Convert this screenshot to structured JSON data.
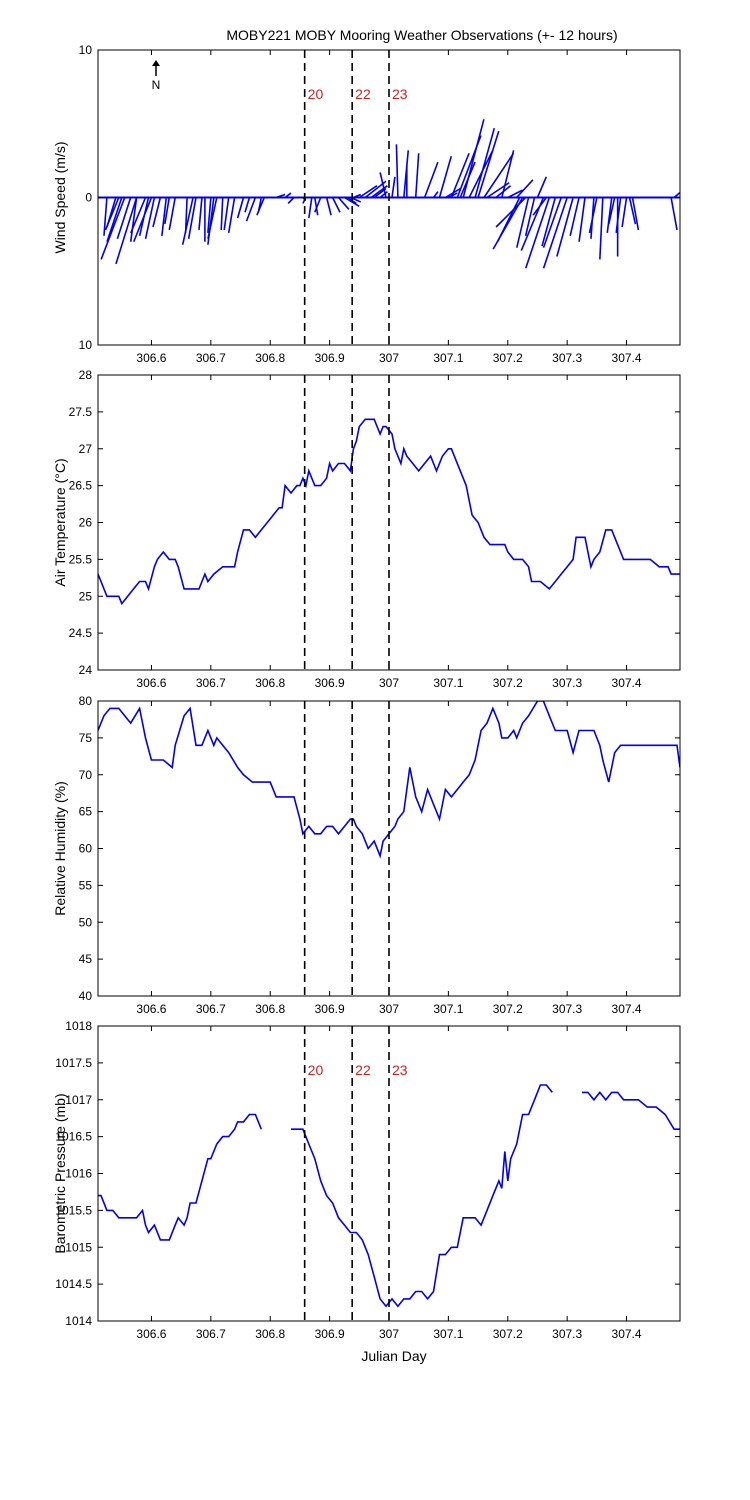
{
  "title": "MOBY221 MOBY Mooring Weather Observations (+- 12 hours)",
  "xlabel": "Julian Day",
  "north_label": "N",
  "colors": {
    "series": "#0000ee",
    "marker_text": "#cc2222",
    "axes": "#000000"
  },
  "markers": [
    {
      "label": "20",
      "x": 306.858
    },
    {
      "label": "22",
      "x": 306.938
    },
    {
      "label": "23",
      "x": 307.0
    }
  ],
  "x_ticks": [
    306.6,
    306.7,
    306.8,
    306.9,
    307,
    307.1,
    307.2,
    307.3,
    307.4
  ],
  "x_tick_labels": [
    "306.6",
    "306.7",
    "306.8",
    "306.9",
    "307",
    "307.1",
    "307.2",
    "307.3",
    "307.4"
  ],
  "chart_data": [
    {
      "type": "vector",
      "ylabel": "Wind Speed (m/s)",
      "xlim": [
        306.51,
        307.49
      ],
      "ylim": [
        -10,
        10
      ],
      "y_ticks": [
        -10,
        0,
        10
      ],
      "y_tick_labels": [
        "10",
        "0",
        "10"
      ],
      "show_markers": true,
      "vectors": [
        [
          306.51,
          -0.5,
          -2.0
        ],
        [
          306.525,
          -0.2,
          -2.6
        ],
        [
          306.54,
          -0.6,
          -2.0
        ],
        [
          306.545,
          -0.9,
          -2.2
        ],
        [
          306.55,
          -1.0,
          -3.0
        ],
        [
          306.555,
          -1.6,
          -4.2
        ],
        [
          306.565,
          -0.9,
          -2.8
        ],
        [
          306.575,
          -1.4,
          -4.5
        ],
        [
          306.575,
          -0.4,
          -3.0
        ],
        [
          306.59,
          -1.0,
          -2.4
        ],
        [
          306.595,
          -0.6,
          -2.6
        ],
        [
          306.6,
          -1.2,
          -3.0
        ],
        [
          306.605,
          -0.6,
          -2.8
        ],
        [
          306.615,
          -0.5,
          -2.0
        ],
        [
          306.625,
          -0.3,
          -2.6
        ],
        [
          306.63,
          -0.3,
          -1.8
        ],
        [
          306.64,
          -0.4,
          -2.2
        ],
        [
          306.66,
          -0.1,
          -2.4
        ],
        [
          306.67,
          -0.7,
          -3.2
        ],
        [
          306.675,
          -0.5,
          -2.8
        ],
        [
          306.685,
          -0.2,
          -2.2
        ],
        [
          306.69,
          0.0,
          -3.0
        ],
        [
          306.7,
          -0.2,
          -2.4
        ],
        [
          306.705,
          -0.4,
          -3.2
        ],
        [
          306.71,
          -0.6,
          -2.8
        ],
        [
          306.72,
          -0.1,
          -2.2
        ],
        [
          306.73,
          -0.3,
          -2.2
        ],
        [
          306.74,
          -0.4,
          -2.4
        ],
        [
          306.755,
          -0.4,
          -1.4
        ],
        [
          306.765,
          -0.3,
          -1.0
        ],
        [
          306.775,
          -0.6,
          -1.6
        ],
        [
          306.785,
          -0.2,
          -1.0
        ],
        [
          306.79,
          -0.5,
          -1.2
        ],
        [
          306.81,
          0.6,
          0.2
        ],
        [
          306.825,
          0.4,
          0.3
        ],
        [
          306.84,
          -0.4,
          -0.4
        ],
        [
          306.855,
          0.2,
          -0.2
        ],
        [
          306.86,
          -0.2,
          -0.4
        ],
        [
          306.87,
          -0.2,
          -1.4
        ],
        [
          306.875,
          0.2,
          -1.2
        ],
        [
          306.885,
          -0.4,
          -1.0
        ],
        [
          306.895,
          0.3,
          -1.2
        ],
        [
          306.905,
          0.5,
          -1.0
        ],
        [
          306.915,
          0.7,
          -0.8
        ],
        [
          306.925,
          1.0,
          -0.6
        ],
        [
          306.93,
          0.6,
          -0.4
        ],
        [
          306.935,
          0.7,
          -0.3
        ],
        [
          306.94,
          0.5,
          0.2
        ],
        [
          306.95,
          1.2,
          0.8
        ],
        [
          306.96,
          1.4,
          1.1
        ],
        [
          306.97,
          1.1,
          0.8
        ],
        [
          306.975,
          0.8,
          0.6
        ],
        [
          306.985,
          0.5,
          0.4
        ],
        [
          306.995,
          -0.4,
          1.7
        ],
        [
          307.005,
          0.2,
          1.4
        ],
        [
          307.015,
          -0.1,
          3.6
        ],
        [
          307.025,
          0.3,
          3.2
        ],
        [
          307.03,
          0.0,
          2.2
        ],
        [
          307.045,
          0.2,
          3.0
        ],
        [
          307.06,
          0.9,
          2.4
        ],
        [
          307.075,
          0.3,
          0.4
        ],
        [
          307.085,
          0.8,
          2.8
        ],
        [
          307.095,
          1.0,
          0.6
        ],
        [
          307.1,
          0.6,
          0.3
        ],
        [
          307.105,
          1.2,
          3.0
        ],
        [
          307.115,
          1.6,
          4.2
        ],
        [
          307.12,
          1.0,
          2.4
        ],
        [
          307.125,
          1.4,
          5.3
        ],
        [
          307.135,
          1.6,
          3.2
        ],
        [
          307.145,
          1.3,
          4.7
        ],
        [
          307.15,
          1.4,
          4.5
        ],
        [
          307.16,
          2.0,
          3.0
        ],
        [
          307.165,
          1.5,
          1.0
        ],
        [
          307.17,
          1.5,
          0.0
        ],
        [
          307.18,
          1.0,
          0.8
        ],
        [
          307.19,
          0.8,
          3.2
        ],
        [
          307.2,
          1.0,
          0.5
        ],
        [
          307.215,
          1.1,
          1.2
        ],
        [
          307.22,
          -1.5,
          -3.0
        ],
        [
          307.225,
          -2.0,
          -3.5
        ],
        [
          307.23,
          -2.0,
          -2.0
        ],
        [
          307.235,
          -0.8,
          -3.4
        ],
        [
          307.245,
          -0.6,
          -2.6
        ],
        [
          307.25,
          0.6,
          1.4
        ],
        [
          307.26,
          -1.5,
          -3.6
        ],
        [
          307.265,
          -0.9,
          -1.2
        ],
        [
          307.27,
          -1.6,
          -4.8
        ],
        [
          307.28,
          -0.9,
          -3.3
        ],
        [
          307.29,
          -1.2,
          -3.4
        ],
        [
          307.3,
          -1.6,
          -4.8
        ],
        [
          307.31,
          -1.1,
          -4.0
        ],
        [
          307.32,
          -0.6,
          -2.6
        ],
        [
          307.33,
          -0.4,
          -3.0
        ],
        [
          307.345,
          -0.2,
          -2.8
        ],
        [
          307.35,
          -0.5,
          -2.4
        ],
        [
          307.36,
          -0.2,
          -4.2
        ],
        [
          307.375,
          -0.3,
          -2.4
        ],
        [
          307.38,
          -0.4,
          -1.8
        ],
        [
          307.385,
          0.0,
          -4.0
        ],
        [
          307.39,
          -0.3,
          -2.4
        ],
        [
          307.4,
          -0.3,
          -2.0
        ],
        [
          307.405,
          0.4,
          -1.8
        ],
        [
          307.41,
          0.4,
          -2.2
        ],
        [
          307.41,
          0.0,
          0.0
        ],
        [
          307.44,
          0.0,
          0.0
        ],
        [
          307.47,
          0.0,
          0.0
        ],
        [
          307.475,
          0.4,
          -2.2
        ],
        [
          307.48,
          0.6,
          0.5
        ]
      ]
    },
    {
      "type": "line",
      "ylabel": "Air Temperature (°C)",
      "xlim": [
        306.51,
        307.49
      ],
      "ylim": [
        24,
        28
      ],
      "y_ticks": [
        24,
        24.5,
        25,
        25.5,
        26,
        26.5,
        27,
        27.5,
        28
      ],
      "y_tick_labels": [
        "24",
        "24.5",
        "25",
        "25.5",
        "26",
        "26.5",
        "27",
        "27.5",
        "28"
      ],
      "show_markers": false,
      "x": [
        306.51,
        306.515,
        306.525,
        306.535,
        306.545,
        306.55,
        306.56,
        306.57,
        306.58,
        306.59,
        306.595,
        306.605,
        306.61,
        306.62,
        306.63,
        306.64,
        306.645,
        306.655,
        306.66,
        306.68,
        306.69,
        306.695,
        306.705,
        306.72,
        306.73,
        306.74,
        306.745,
        306.755,
        306.765,
        306.775,
        306.785,
        306.795,
        306.805,
        306.815,
        306.82,
        306.825,
        306.835,
        306.845,
        306.85,
        306.855,
        306.86,
        306.865,
        306.87,
        306.875,
        306.885,
        306.895,
        306.9,
        306.905,
        306.915,
        306.925,
        306.935,
        306.94,
        306.945,
        306.95,
        306.96,
        306.965,
        306.97,
        306.975,
        306.985,
        306.99,
        306.995,
        307.005,
        307.01,
        307.02,
        307.025,
        307.03,
        307.04,
        307.05,
        307.06,
        307.07,
        307.08,
        307.09,
        307.1,
        307.105,
        307.11,
        307.125,
        307.13,
        307.14,
        307.15,
        307.16,
        307.17,
        307.175,
        307.185,
        307.195,
        307.2,
        307.21,
        307.215,
        307.225,
        307.235,
        307.24,
        307.25,
        307.255,
        307.27,
        307.28,
        307.29,
        307.3,
        307.31,
        307.315,
        307.325,
        307.33,
        307.34,
        307.345,
        307.355,
        307.365,
        307.37,
        307.375,
        307.385,
        307.395,
        307.41,
        307.425,
        307.44,
        307.455,
        307.47,
        307.475,
        307.49
      ],
      "y": [
        25.3,
        25.2,
        25.0,
        25.0,
        25.0,
        24.9,
        25.0,
        25.1,
        25.2,
        25.2,
        25.1,
        25.4,
        25.5,
        25.6,
        25.5,
        25.5,
        25.4,
        25.1,
        25.1,
        25.1,
        25.3,
        25.2,
        25.3,
        25.4,
        25.4,
        25.4,
        25.6,
        25.9,
        25.9,
        25.8,
        25.9,
        26.0,
        26.1,
        26.2,
        26.2,
        26.5,
        26.4,
        26.5,
        26.5,
        26.6,
        26.5,
        26.7,
        26.6,
        26.5,
        26.5,
        26.6,
        26.8,
        26.7,
        26.8,
        26.8,
        26.7,
        27.0,
        27.1,
        27.3,
        27.4,
        27.4,
        27.4,
        27.4,
        27.2,
        27.3,
        27.3,
        27.2,
        27.0,
        26.8,
        27.0,
        26.9,
        26.8,
        26.7,
        26.8,
        26.9,
        26.7,
        26.9,
        27.0,
        27.0,
        26.9,
        26.6,
        26.5,
        26.1,
        26.0,
        25.8,
        25.7,
        25.7,
        25.7,
        25.7,
        25.6,
        25.5,
        25.5,
        25.5,
        25.4,
        25.2,
        25.2,
        25.2,
        25.1,
        25.2,
        25.3,
        25.4,
        25.5,
        25.8,
        25.8,
        25.8,
        25.4,
        25.5,
        25.6,
        25.9,
        25.9,
        25.9,
        25.7,
        25.5,
        25.5,
        25.5,
        25.5,
        25.4,
        25.4,
        25.3,
        25.3
      ]
    },
    {
      "type": "line",
      "ylabel": "Relative Humidity (%)",
      "xlim": [
        306.51,
        307.49
      ],
      "ylim": [
        40,
        80
      ],
      "y_ticks": [
        40,
        45,
        50,
        55,
        60,
        65,
        70,
        75,
        80
      ],
      "y_tick_labels": [
        "40",
        "45",
        "50",
        "55",
        "60",
        "65",
        "70",
        "75",
        "80"
      ],
      "show_markers": false,
      "x": [
        306.51,
        306.52,
        306.53,
        306.545,
        306.555,
        306.565,
        306.58,
        306.59,
        306.6,
        306.61,
        306.62,
        306.635,
        306.64,
        306.655,
        306.665,
        306.675,
        306.685,
        306.695,
        306.705,
        306.71,
        306.72,
        306.73,
        306.745,
        306.755,
        306.77,
        306.78,
        306.8,
        306.81,
        306.825,
        306.84,
        306.85,
        306.855,
        306.865,
        306.875,
        306.885,
        306.895,
        306.905,
        306.915,
        306.925,
        306.935,
        306.94,
        306.945,
        306.955,
        306.965,
        306.975,
        306.985,
        306.99,
        307.0,
        307.01,
        307.015,
        307.025,
        307.035,
        307.045,
        307.055,
        307.065,
        307.075,
        307.085,
        307.095,
        307.105,
        307.115,
        307.125,
        307.135,
        307.145,
        307.155,
        307.165,
        307.175,
        307.185,
        307.19,
        307.2,
        307.21,
        307.215,
        307.225,
        307.235,
        307.25,
        307.26,
        307.27,
        307.28,
        307.29,
        307.3,
        307.31,
        307.32,
        307.335,
        307.345,
        307.355,
        307.36,
        307.37,
        307.38,
        307.39,
        307.4,
        307.41,
        307.42,
        307.435,
        307.45,
        307.465,
        307.475,
        307.485,
        307.49
      ],
      "y": [
        76,
        78,
        79,
        79,
        78,
        77,
        79,
        75,
        72,
        72,
        72,
        71,
        74,
        78,
        79,
        74,
        74,
        76,
        74,
        75,
        74,
        73,
        71,
        70,
        69,
        69,
        69,
        67,
        67,
        67,
        64,
        62,
        63,
        62,
        62,
        63,
        63,
        62,
        63,
        64,
        64,
        63,
        62,
        60,
        61,
        59,
        61,
        62,
        63,
        64,
        65,
        71,
        67,
        65,
        68,
        66,
        64,
        68,
        67,
        68,
        69,
        70,
        72,
        76,
        77,
        79,
        77,
        75,
        75,
        76,
        75,
        77,
        78,
        80,
        80,
        78,
        76,
        76,
        76,
        73,
        76,
        76,
        76,
        74,
        72,
        69,
        73,
        74,
        74,
        74,
        74,
        74,
        74,
        74,
        74,
        74,
        71
      ]
    },
    {
      "type": "line",
      "ylabel": "Barometric Pressure (mb)",
      "xlim": [
        306.51,
        307.49
      ],
      "ylim": [
        1014,
        1018
      ],
      "y_ticks": [
        1014,
        1014.5,
        1015,
        1015.5,
        1016,
        1016.5,
        1017,
        1017.5,
        1018
      ],
      "y_tick_labels": [
        "1014",
        "1014.5",
        "1015",
        "1015.5",
        "1016",
        "1016.5",
        "1017",
        "1017.5",
        "1018"
      ],
      "show_markers": true,
      "x": [
        306.51,
        306.515,
        306.525,
        306.535,
        306.545,
        306.555,
        306.565,
        306.575,
        306.585,
        306.59,
        306.595,
        306.605,
        306.615,
        306.62,
        306.63,
        306.64,
        306.645,
        306.655,
        306.66,
        306.665,
        306.675,
        306.685,
        306.695,
        306.7,
        306.71,
        306.72,
        306.73,
        306.74,
        306.745,
        306.755,
        306.765,
        306.775,
        306.785,
        306.795,
        306.805,
        null,
        306.835,
        306.845,
        306.855,
        306.865,
        306.875,
        306.885,
        306.895,
        306.905,
        306.915,
        306.925,
        306.935,
        306.945,
        306.955,
        306.965,
        306.975,
        306.985,
        306.995,
        307.005,
        307.015,
        307.025,
        307.035,
        307.045,
        307.055,
        307.065,
        307.075,
        307.085,
        307.095,
        307.105,
        307.115,
        307.125,
        307.135,
        307.145,
        307.155,
        307.165,
        307.175,
        307.185,
        307.19,
        307.195,
        307.2,
        307.205,
        307.215,
        307.225,
        307.235,
        307.245,
        307.255,
        307.265,
        307.275,
        307.285,
        307.295,
        307.305,
        null,
        307.325,
        307.335,
        307.345,
        307.355,
        307.365,
        307.375,
        307.385,
        307.395,
        307.405,
        307.42,
        307.435,
        307.45,
        307.465,
        307.48,
        307.49
      ],
      "y": [
        1015.7,
        1015.7,
        1015.5,
        1015.5,
        1015.4,
        1015.4,
        1015.4,
        1015.4,
        1015.5,
        1015.3,
        1015.2,
        1015.3,
        1015.1,
        1015.1,
        1015.1,
        1015.3,
        1015.4,
        1015.3,
        1015.4,
        1015.6,
        1015.6,
        1015.9,
        1016.2,
        1016.2,
        1016.4,
        1016.5,
        1016.5,
        1016.6,
        1016.7,
        1016.7,
        1016.8,
        1016.8,
        1016.6,
        null,
        null,
        null,
        1016.6,
        1016.6,
        1016.6,
        1016.4,
        1016.2,
        1015.9,
        1015.7,
        1015.6,
        1015.4,
        1015.3,
        1015.2,
        1015.2,
        1015.1,
        1014.9,
        1014.6,
        1014.3,
        1014.2,
        1014.3,
        1014.2,
        1014.3,
        1014.3,
        1014.4,
        1014.4,
        1014.3,
        1014.4,
        1014.9,
        1014.9,
        1015.0,
        1015.0,
        1015.4,
        1015.4,
        1015.4,
        1015.3,
        1015.5,
        1015.7,
        1015.9,
        1015.8,
        1016.3,
        1015.9,
        1016.2,
        1016.4,
        1016.8,
        1016.8,
        1017.0,
        1017.2,
        1017.2,
        1017.1,
        null,
        null,
        null,
        null,
        1017.1,
        1017.1,
        1017.0,
        1017.1,
        1017.0,
        1017.1,
        1017.1,
        1017.0,
        1017.0,
        1017.0,
        1016.9,
        1016.9,
        1016.8,
        1016.6,
        1016.6
      ]
    }
  ]
}
